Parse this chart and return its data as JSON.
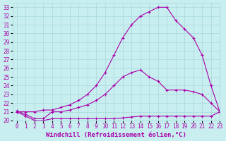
{
  "xlabel": "Windchill (Refroidissement éolien,°C)",
  "bg_color": "#c8eef0",
  "grid_color": "#a8d8dc",
  "line_color": "#aa00aa",
  "xlim": [
    -0.5,
    23
  ],
  "ylim": [
    20,
    33.5
  ],
  "xticks": [
    0,
    1,
    2,
    3,
    4,
    5,
    6,
    7,
    8,
    9,
    10,
    11,
    12,
    13,
    14,
    15,
    16,
    17,
    18,
    19,
    20,
    21,
    22,
    23
  ],
  "yticks": [
    20,
    21,
    22,
    23,
    24,
    25,
    26,
    27,
    28,
    29,
    30,
    31,
    32,
    33
  ],
  "line1_x": [
    0,
    1,
    2,
    3,
    4,
    5,
    6,
    7,
    8,
    9,
    10,
    11,
    12,
    13,
    14,
    15,
    16,
    17,
    18,
    19,
    20,
    21,
    22,
    23
  ],
  "line1_y": [
    21.1,
    20.7,
    20.2,
    20.2,
    21.0,
    21.0,
    21.2,
    21.5,
    21.8,
    22.3,
    23.0,
    24.0,
    25.0,
    25.5,
    25.8,
    25.0,
    24.5,
    23.5,
    23.5,
    23.5,
    23.3,
    23.0,
    22.0,
    21.0
  ],
  "line2_x": [
    0,
    1,
    2,
    3,
    4,
    5,
    6,
    7,
    8,
    9,
    10,
    11,
    12,
    13,
    14,
    15,
    16,
    17,
    18,
    19,
    20,
    21,
    22,
    23
  ],
  "line2_y": [
    21.0,
    21.0,
    21.0,
    21.2,
    21.2,
    21.5,
    21.8,
    22.3,
    23.0,
    24.0,
    25.5,
    27.5,
    29.5,
    31.0,
    32.0,
    32.5,
    33.0,
    33.0,
    31.5,
    30.5,
    29.5,
    27.5,
    24.0,
    21.0
  ],
  "line3_x": [
    0,
    1,
    2,
    3,
    4,
    5,
    6,
    7,
    8,
    9,
    10,
    11,
    12,
    13,
    14,
    15,
    16,
    17,
    18,
    19,
    20,
    21,
    22,
    23
  ],
  "line3_y": [
    21.0,
    20.5,
    20.0,
    20.0,
    20.2,
    20.2,
    20.2,
    20.2,
    20.2,
    20.2,
    20.2,
    20.2,
    20.3,
    20.4,
    20.5,
    20.5,
    20.5,
    20.5,
    20.5,
    20.5,
    20.5,
    20.5,
    20.5,
    21.0
  ],
  "tick_fontsize": 5.5,
  "label_fontsize": 6.5
}
